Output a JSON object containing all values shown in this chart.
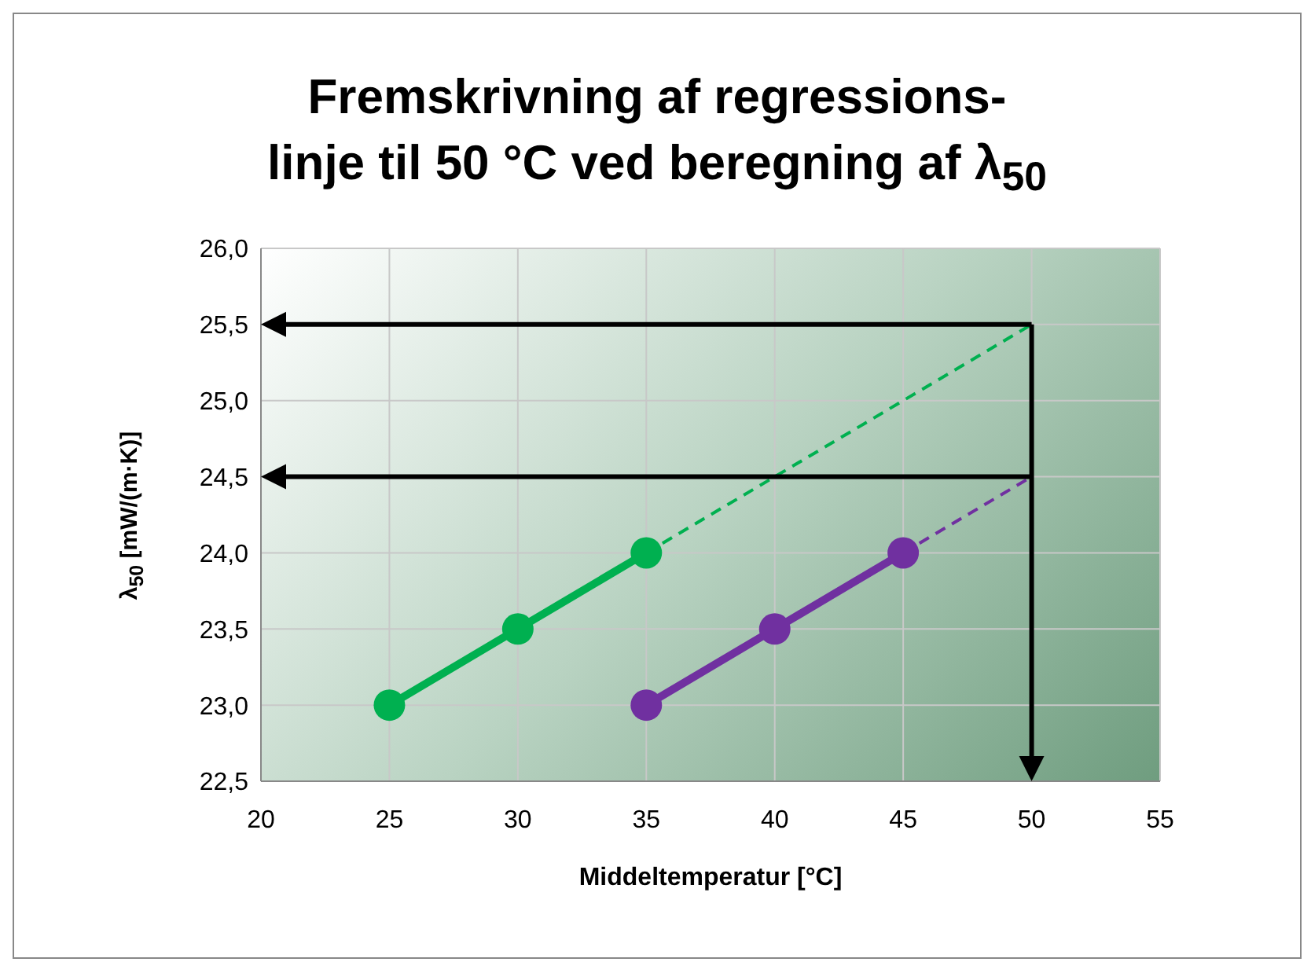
{
  "chart_data": {
    "type": "line",
    "title": "Fremskrivning af regressions-\nlinje til 50 °C ved beregning af λ$_{50}$",
    "xlabel": "Middeltemperatur [°C]",
    "ylabel": "λ$_{50}$ [mW/(m·K)]",
    "series": [
      {
        "color": "#00b050",
        "x": [
          25,
          30,
          35
        ],
        "values": [
          23,
          23.5,
          24
        ],
        "marker": "circle",
        "line_style": "solid"
      },
      {
        "color": "#7030a0",
        "x": [
          35,
          40,
          45
        ],
        "values": [
          23,
          23.5,
          24
        ],
        "marker": "circle",
        "line_style": "solid"
      },
      {
        "color": "#00b050",
        "x": [
          35,
          50
        ],
        "values": [
          24,
          25.5
        ],
        "marker": "none",
        "line_style": "dashed"
      },
      {
        "color": "#7030a0",
        "x": [
          45,
          50
        ],
        "values": [
          24,
          24.5
        ],
        "marker": "none",
        "line_style": "dashed"
      }
    ],
    "xlim": [
      20,
      55
    ],
    "xticks": [
      20,
      25,
      30,
      35,
      40,
      45,
      50,
      55
    ],
    "ylim": [
      22.5,
      26
    ],
    "yticks": [
      {
        "value": 22.5,
        "label": "22,5"
      },
      {
        "value": 23,
        "label": "23,0"
      },
      {
        "value": 23.5,
        "label": "23,5"
      },
      {
        "value": 24,
        "label": "24,0"
      },
      {
        "value": 24.5,
        "label": "24,5"
      },
      {
        "value": 25,
        "label": "25,0"
      },
      {
        "value": 25.5,
        "label": "25,5"
      },
      {
        "value": 26,
        "label": "26,0"
      }
    ],
    "grid": true
  }
}
